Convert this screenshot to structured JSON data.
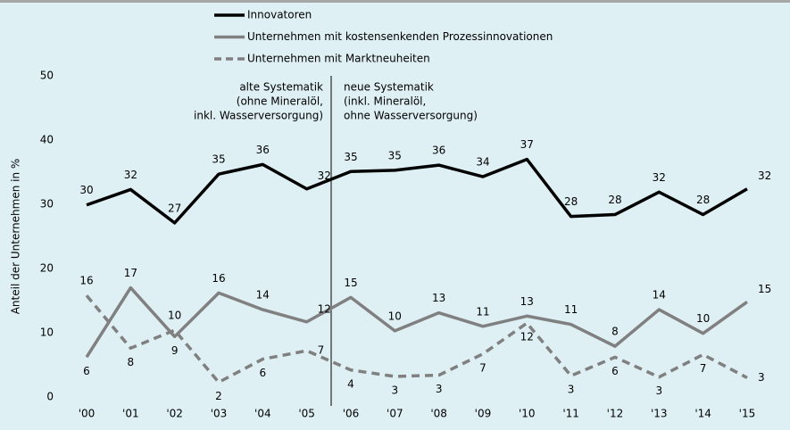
{
  "chart_data": {
    "type": "line",
    "y_label": "Anteil der Unternehmen in %",
    "categories": [
      "'00",
      "'01",
      "'02",
      "'03",
      "'04",
      "'05",
      "'06",
      "'07",
      "'08",
      "'09",
      "'10",
      "'11",
      "'12",
      "'13",
      "'14",
      "'15"
    ],
    "ylim": [
      0,
      50
    ],
    "yticks": [
      0,
      10,
      20,
      30,
      40,
      50
    ],
    "annotations": [
      {
        "lines": [
          "alte Systematik",
          "(ohne Mineralöl,",
          "inkl. Wasserversorgung)"
        ]
      },
      {
        "lines": [
          "neue Systematik",
          "(inkl. Mineralöl,",
          "ohne Wasserversorgung)"
        ]
      }
    ],
    "series": [
      {
        "name": "Innovatoren",
        "color": "#000000",
        "dashed": false,
        "values": [
          29.9,
          32.3,
          27.1,
          34.7,
          36.2,
          32.4,
          35.1,
          35.3,
          36.1,
          34.3,
          37.0,
          28.1,
          28.4,
          31.9,
          28.4,
          32.4
        ],
        "value_labels": [
          "30",
          "32",
          "27",
          "35",
          "36",
          "32",
          "35",
          "35",
          "36",
          "34",
          "37",
          "28",
          "28",
          "32",
          "28",
          "32"
        ]
      },
      {
        "name": "Unternehmen mit kostensenkenden Prozessinnovationen",
        "color": "#808080",
        "dashed": false,
        "values": [
          6.2,
          17.0,
          9.4,
          16.2,
          13.6,
          11.7,
          15.5,
          10.3,
          13.1,
          11.0,
          12.6,
          11.3,
          7.9,
          13.6,
          9.9,
          14.8
        ],
        "value_labels": [
          "6",
          "17",
          "9",
          "16",
          "14",
          "12",
          "15",
          "10",
          "13",
          "11",
          "13",
          "11",
          "8",
          "14",
          "10",
          "15"
        ]
      },
      {
        "name": "Unternehmen mit Marktneuheiten",
        "color": "#808080",
        "dashed": true,
        "values": [
          15.8,
          7.6,
          10.4,
          2.3,
          5.9,
          7.2,
          4.2,
          3.2,
          3.4,
          6.7,
          11.5,
          3.3,
          6.2,
          3.1,
          6.6,
          3.0
        ],
        "value_labels": [
          "16",
          "8",
          "10",
          "2",
          "6",
          "7",
          "4",
          "3",
          "3",
          "7",
          "12",
          "3",
          "6",
          "3",
          "7",
          "3"
        ]
      }
    ]
  }
}
